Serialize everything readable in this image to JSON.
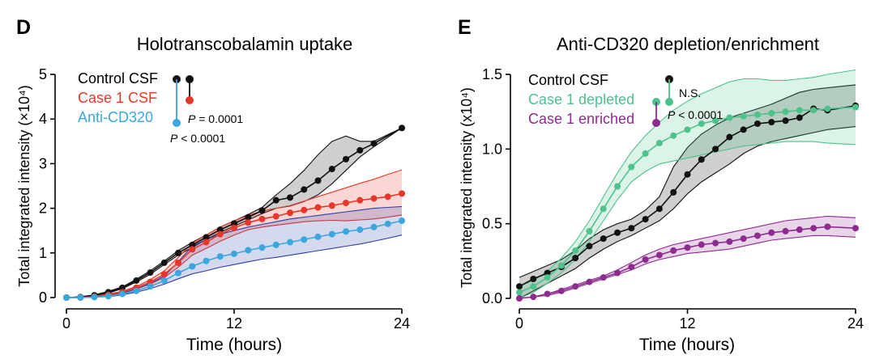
{
  "colors": {
    "control": "#111111",
    "case1": "#e8372a",
    "anti": "#3aa7df",
    "anti_band": "#2b3fa8",
    "depleted": "#4ec28b",
    "enriched": "#8e2b8f"
  },
  "chart_data": [
    {
      "type": "line",
      "panel": "D",
      "title": "Holotranscobalamin uptake",
      "xlabel": "Time (hours)",
      "ylabel": "Total integrated intensity (×10⁴)",
      "xlim": [
        0,
        24
      ],
      "ylim": [
        0,
        5
      ],
      "xticks": [
        "0",
        "12",
        "24"
      ],
      "yticks": [
        "0",
        "1",
        "2",
        "3",
        "4",
        "5"
      ],
      "legend_position": "top-left",
      "series": [
        {
          "name": "Control CSF",
          "color_key": "control",
          "x": [
            0,
            1,
            2,
            3,
            4,
            5,
            6,
            7,
            8,
            9,
            10,
            11,
            12,
            13,
            14,
            15,
            16,
            17,
            18,
            19,
            20,
            21,
            22,
            24
          ],
          "y": [
            0,
            0.01,
            0.05,
            0.12,
            0.22,
            0.38,
            0.56,
            0.78,
            1.0,
            1.18,
            1.35,
            1.52,
            1.66,
            1.8,
            1.95,
            2.18,
            2.24,
            2.42,
            2.62,
            2.88,
            3.1,
            3.3,
            3.45,
            3.8
          ],
          "lower": [
            0,
            0,
            0.04,
            0.1,
            0.2,
            0.35,
            0.52,
            0.74,
            0.95,
            1.12,
            1.3,
            1.46,
            1.6,
            1.74,
            1.88,
            2.0,
            2.05,
            2.15,
            2.3,
            2.55,
            2.85,
            3.15,
            3.38,
            3.8
          ],
          "upper": [
            0,
            0.02,
            0.06,
            0.14,
            0.24,
            0.41,
            0.6,
            0.82,
            1.05,
            1.24,
            1.4,
            1.58,
            1.72,
            1.86,
            2.02,
            2.3,
            2.55,
            2.85,
            3.2,
            3.5,
            3.62,
            3.5,
            3.5,
            3.8
          ]
        },
        {
          "name": "Case 1 CSF",
          "color_key": "case1",
          "x": [
            0,
            1,
            2,
            3,
            4,
            5,
            6,
            7,
            8,
            9,
            10,
            11,
            12,
            13,
            14,
            15,
            16,
            17,
            18,
            19,
            20,
            21,
            22,
            23,
            24
          ],
          "y": [
            0,
            0,
            0.02,
            0.06,
            0.12,
            0.22,
            0.35,
            0.52,
            0.78,
            1.08,
            1.24,
            1.42,
            1.56,
            1.68,
            1.76,
            1.82,
            1.9,
            1.96,
            2.02,
            2.06,
            2.12,
            2.18,
            2.22,
            2.26,
            2.33
          ],
          "lower": [
            0,
            0,
            0.01,
            0.04,
            0.1,
            0.19,
            0.3,
            0.45,
            0.68,
            0.95,
            1.1,
            1.26,
            1.4,
            1.52,
            1.58,
            1.62,
            1.66,
            1.7,
            1.72,
            1.73,
            1.72,
            1.74,
            1.76,
            1.8,
            1.85
          ],
          "upper": [
            0,
            0,
            0.03,
            0.08,
            0.14,
            0.25,
            0.4,
            0.6,
            0.9,
            1.22,
            1.4,
            1.58,
            1.72,
            1.84,
            1.94,
            2.0,
            2.06,
            2.16,
            2.26,
            2.36,
            2.46,
            2.56,
            2.65,
            2.76,
            2.86
          ]
        },
        {
          "name": "Anti-CD320",
          "color_key": "anti",
          "band_color_key": "anti_band",
          "x": [
            0,
            1,
            2,
            3,
            4,
            5,
            6,
            7,
            8,
            9,
            10,
            11,
            12,
            13,
            14,
            15,
            16,
            17,
            18,
            19,
            20,
            21,
            22,
            23,
            24
          ],
          "y": [
            0,
            0,
            0.01,
            0.03,
            0.08,
            0.15,
            0.25,
            0.38,
            0.55,
            0.7,
            0.82,
            0.92,
            0.98,
            1.06,
            1.12,
            1.18,
            1.24,
            1.3,
            1.36,
            1.42,
            1.48,
            1.52,
            1.58,
            1.65,
            1.72
          ],
          "lower": [
            0,
            0,
            0.01,
            0.02,
            0.06,
            0.12,
            0.2,
            0.3,
            0.42,
            0.53,
            0.6,
            0.68,
            0.74,
            0.8,
            0.86,
            0.9,
            0.95,
            1.0,
            1.05,
            1.1,
            1.15,
            1.2,
            1.26,
            1.33,
            1.4
          ],
          "upper": [
            0,
            0,
            0.02,
            0.05,
            0.1,
            0.19,
            0.32,
            0.48,
            0.8,
            1.15,
            1.3,
            1.42,
            1.5,
            1.58,
            1.64,
            1.7,
            1.76,
            1.8,
            1.84,
            1.88,
            1.92,
            1.96,
            2.0,
            2.02,
            2.04
          ]
        }
      ],
      "legend": [
        {
          "label": "Control CSF",
          "color_key": "control"
        },
        {
          "label": "Case 1 CSF",
          "color_key": "case1"
        },
        {
          "label": "Anti-CD320",
          "color_key": "anti"
        }
      ],
      "annotations": [
        {
          "italic": "P",
          "text": " = 0.0001"
        },
        {
          "italic": "P",
          "text": " < 0.0001"
        }
      ]
    },
    {
      "type": "line",
      "panel": "E",
      "title": "Anti-CD320 depletion/enrichment",
      "xlabel": "Time (hours)",
      "ylabel": "Total integrated intensity (x10⁴)",
      "xlim": [
        0,
        24
      ],
      "ylim": [
        0,
        1.5
      ],
      "xticks": [
        "0",
        "12",
        "24"
      ],
      "yticks": [
        "0.0",
        "0.5",
        "1.0",
        "1.5"
      ],
      "legend_position": "top-left",
      "series": [
        {
          "name": "Control CSF",
          "color_key": "control",
          "x": [
            0,
            1,
            2,
            3,
            4,
            5,
            6,
            7,
            8,
            9,
            10,
            11,
            12,
            13,
            14,
            15,
            16,
            17,
            18,
            19,
            20,
            21,
            22,
            24
          ],
          "y": [
            0.08,
            0.13,
            0.17,
            0.21,
            0.27,
            0.35,
            0.4,
            0.44,
            0.47,
            0.53,
            0.6,
            0.71,
            0.83,
            0.93,
            1.0,
            1.08,
            1.13,
            1.17,
            1.18,
            1.19,
            1.21,
            1.27,
            1.26,
            1.29
          ],
          "lower": [
            0,
            0.05,
            0.1,
            0.15,
            0.2,
            0.27,
            0.33,
            0.38,
            0.42,
            0.47,
            0.52,
            0.6,
            0.7,
            0.78,
            0.84,
            0.9,
            0.97,
            1.02,
            1.05,
            1.07,
            1.09,
            1.11,
            1.13,
            1.15
          ],
          "upper": [
            0.14,
            0.18,
            0.22,
            0.26,
            0.32,
            0.4,
            0.46,
            0.5,
            0.53,
            0.59,
            0.68,
            0.88,
            1.01,
            1.1,
            1.16,
            1.21,
            1.24,
            1.27,
            1.3,
            1.34,
            1.38,
            1.4,
            1.41,
            1.43
          ]
        },
        {
          "name": "Case 1 depleted",
          "color_key": "depleted",
          "x": [
            0,
            1,
            2,
            3,
            4,
            5,
            6,
            7,
            8,
            9,
            10,
            11,
            12,
            13,
            14,
            15,
            16,
            17,
            18,
            19,
            20,
            21,
            22,
            24
          ],
          "y": [
            0.04,
            0.08,
            0.14,
            0.22,
            0.32,
            0.45,
            0.6,
            0.75,
            0.88,
            0.97,
            1.04,
            1.09,
            1.13,
            1.17,
            1.19,
            1.21,
            1.22,
            1.23,
            1.24,
            1.25,
            1.26,
            1.26,
            1.27,
            1.28
          ],
          "lower": [
            0,
            0.04,
            0.1,
            0.17,
            0.26,
            0.38,
            0.52,
            0.66,
            0.78,
            0.85,
            0.9,
            0.92,
            0.94,
            0.96,
            0.98,
            1.0,
            1.02,
            1.03,
            1.04,
            1.05,
            1.05,
            1.05,
            1.04,
            1.03
          ],
          "upper": [
            0.08,
            0.12,
            0.18,
            0.27,
            0.38,
            0.52,
            0.68,
            0.84,
            0.98,
            1.09,
            1.18,
            1.26,
            1.32,
            1.37,
            1.41,
            1.45,
            1.47,
            1.47,
            1.46,
            1.46,
            1.47,
            1.48,
            1.5,
            1.53
          ]
        },
        {
          "name": "Case 1 enriched",
          "color_key": "enriched",
          "x": [
            0,
            1,
            2,
            3,
            4,
            5,
            6,
            7,
            8,
            9,
            10,
            11,
            12,
            13,
            14,
            15,
            16,
            17,
            18,
            19,
            20,
            21,
            22,
            24
          ],
          "y": [
            0,
            0.01,
            0.03,
            0.05,
            0.08,
            0.11,
            0.14,
            0.17,
            0.21,
            0.26,
            0.29,
            0.32,
            0.34,
            0.36,
            0.37,
            0.38,
            0.4,
            0.42,
            0.44,
            0.45,
            0.46,
            0.47,
            0.48,
            0.47
          ],
          "lower": [
            0,
            0.01,
            0.02,
            0.04,
            0.07,
            0.1,
            0.13,
            0.16,
            0.19,
            0.23,
            0.26,
            0.28,
            0.3,
            0.31,
            0.32,
            0.33,
            0.35,
            0.37,
            0.39,
            0.4,
            0.41,
            0.42,
            0.42,
            0.41
          ],
          "upper": [
            0,
            0.01,
            0.03,
            0.06,
            0.09,
            0.12,
            0.15,
            0.19,
            0.24,
            0.29,
            0.33,
            0.36,
            0.38,
            0.4,
            0.42,
            0.44,
            0.46,
            0.48,
            0.5,
            0.52,
            0.53,
            0.54,
            0.55,
            0.54
          ]
        }
      ],
      "legend": [
        {
          "label": "Control CSF",
          "color_key": "control"
        },
        {
          "label": "Case 1 depleted",
          "color_key": "depleted"
        },
        {
          "label": "Case 1 enriched",
          "color_key": "enriched"
        }
      ],
      "annotations": [
        {
          "italic": "",
          "text": "N.S."
        },
        {
          "italic": "P",
          "text": " < 0.0001"
        }
      ]
    }
  ]
}
